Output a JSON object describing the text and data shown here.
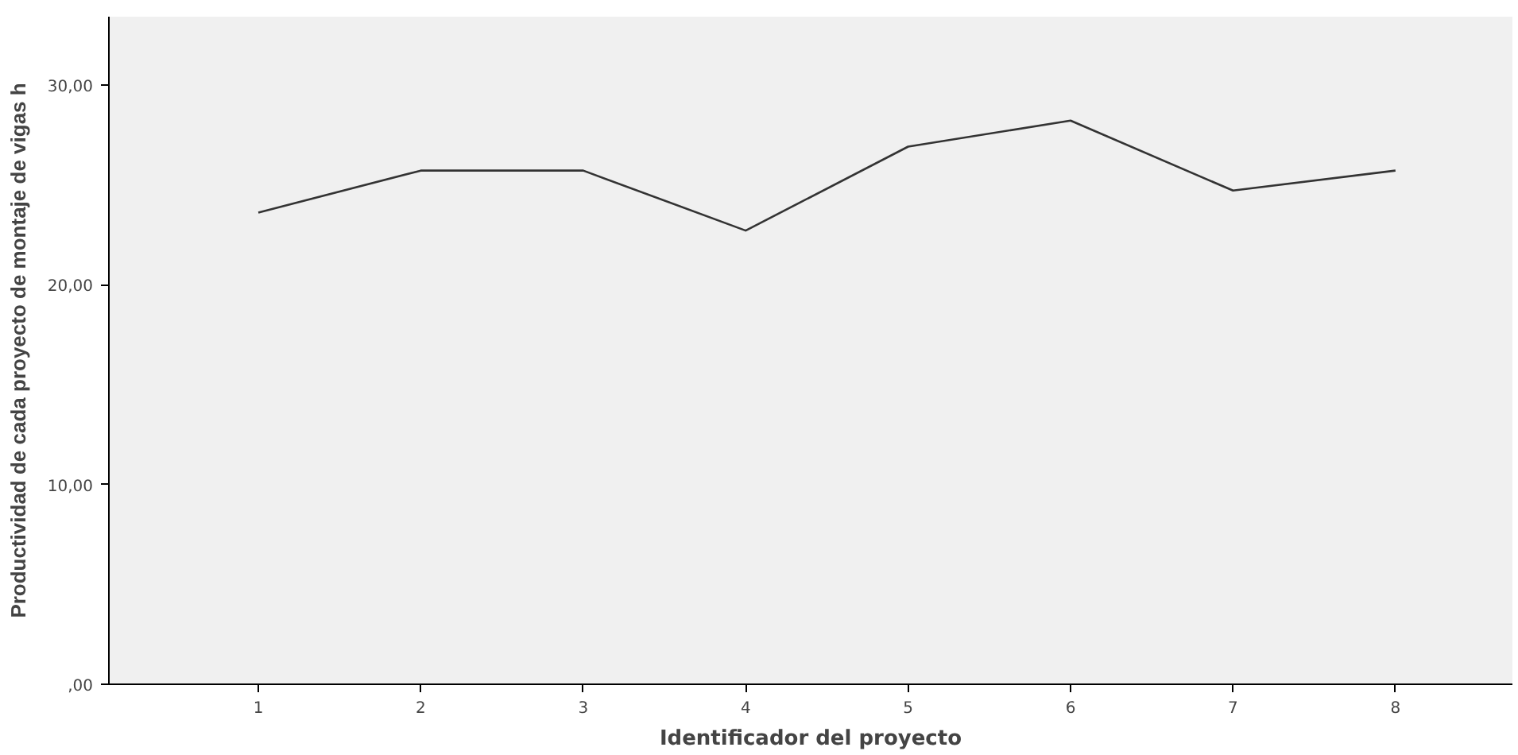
{
  "chart_data": {
    "type": "line",
    "xlabel": "Identificador del proyecto",
    "ylabel": "Productividad de cada proyecto de montaje de vigas h",
    "x": [
      1,
      2,
      3,
      4,
      5,
      6,
      7,
      8
    ],
    "series": [
      {
        "color": "#333333",
        "values": [
          23.6,
          25.7,
          25.7,
          22.7,
          26.9,
          28.2,
          24.7,
          25.7
        ]
      }
    ],
    "xlim": [
      0.08,
      8.72
    ],
    "xticks": [
      1,
      2,
      3,
      4,
      5,
      6,
      7,
      8
    ],
    "ylim": [
      0,
      33.4
    ],
    "yticks": [
      {
        "value": 0,
        "label": ",00"
      },
      {
        "value": 10,
        "label": "10,00"
      },
      {
        "value": 20,
        "label": "20,00"
      },
      {
        "value": 30,
        "label": "30,00"
      }
    ],
    "grid": false,
    "marker": "none",
    "line_style": "solid"
  }
}
